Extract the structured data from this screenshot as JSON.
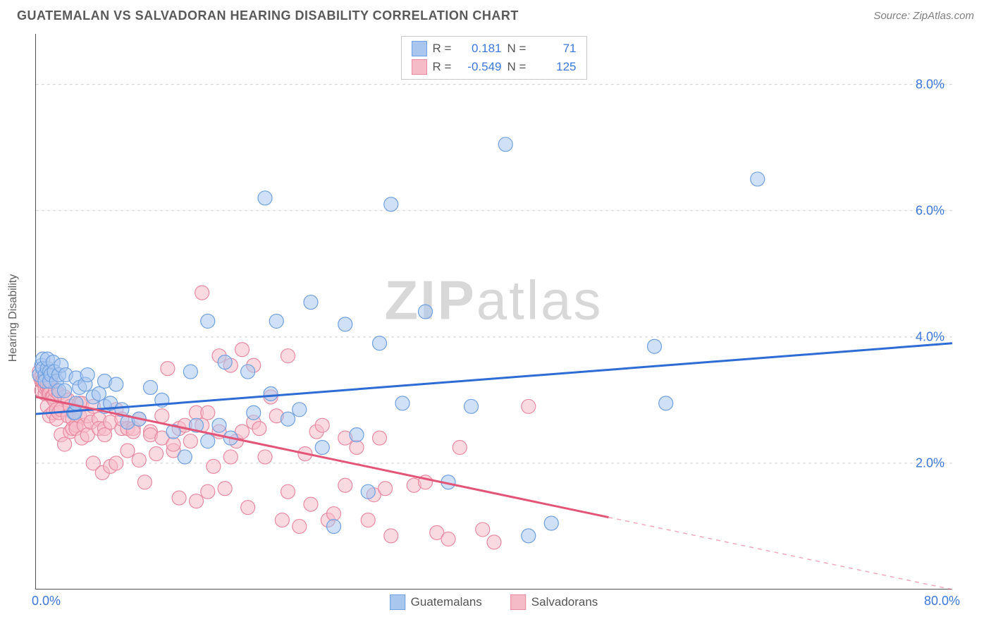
{
  "title": "GUATEMALAN VS SALVADORAN HEARING DISABILITY CORRELATION CHART",
  "source": "Source: ZipAtlas.com",
  "watermark": "ZIPatlas",
  "ylabel": "Hearing Disability",
  "chart": {
    "type": "scatter",
    "xlim": [
      0,
      80
    ],
    "ylim": [
      0,
      8.8
    ],
    "xtick_labels": [
      "0.0%",
      "80.0%"
    ],
    "xtick_positions": [
      0,
      80
    ],
    "ytick_labels": [
      "2.0%",
      "4.0%",
      "6.0%",
      "8.0%"
    ],
    "ytick_positions": [
      2,
      4,
      6,
      8
    ],
    "background_color": "#ffffff",
    "grid_color": "#d0d0d0",
    "grid_dash": "4,4",
    "axis_color": "#505050",
    "tick_font_color": "#3b78d8",
    "tick_fontsize": 18,
    "label_fontsize": 16,
    "label_color": "#606060",
    "marker_radius": 10,
    "marker_stroke_width": 1.2,
    "trend_line_width": 3
  },
  "series": [
    {
      "name": "Guatemalans",
      "fill": "#a9c6ef",
      "stroke": "#6fa0df",
      "fill_opacity": 0.55,
      "R": "0.181",
      "N": "71",
      "trend": {
        "x1": 0,
        "y1": 2.78,
        "x2": 80,
        "y2": 3.9,
        "dashed_after_x": null,
        "color": "#2d6cd4"
      },
      "points": [
        [
          0.3,
          3.4
        ],
        [
          0.5,
          3.55
        ],
        [
          0.6,
          3.65
        ],
        [
          0.6,
          3.5
        ],
        [
          0.8,
          3.4
        ],
        [
          0.8,
          3.3
        ],
        [
          1.0,
          3.5
        ],
        [
          1.0,
          3.65
        ],
        [
          1.2,
          3.45
        ],
        [
          1.2,
          3.3
        ],
        [
          1.3,
          3.4
        ],
        [
          1.5,
          3.6
        ],
        [
          1.6,
          3.45
        ],
        [
          1.8,
          3.3
        ],
        [
          2.0,
          3.4
        ],
        [
          2.0,
          3.15
        ],
        [
          2.2,
          3.55
        ],
        [
          2.5,
          3.15
        ],
        [
          2.6,
          3.4
        ],
        [
          3.3,
          2.8
        ],
        [
          3.4,
          2.8
        ],
        [
          3.5,
          3.35
        ],
        [
          3.5,
          2.95
        ],
        [
          3.8,
          3.2
        ],
        [
          4.3,
          3.25
        ],
        [
          4.5,
          3.4
        ],
        [
          5.0,
          3.05
        ],
        [
          5.5,
          3.1
        ],
        [
          6.0,
          3.3
        ],
        [
          6.0,
          2.9
        ],
        [
          6.5,
          2.95
        ],
        [
          7.0,
          3.25
        ],
        [
          7.5,
          2.85
        ],
        [
          8.0,
          2.65
        ],
        [
          9.0,
          2.7
        ],
        [
          10.0,
          3.2
        ],
        [
          11.0,
          3.0
        ],
        [
          12.0,
          2.5
        ],
        [
          13.0,
          2.1
        ],
        [
          13.5,
          3.45
        ],
        [
          14.0,
          2.6
        ],
        [
          15.0,
          2.35
        ],
        [
          15.0,
          4.25
        ],
        [
          16.0,
          2.6
        ],
        [
          16.5,
          3.6
        ],
        [
          17.0,
          2.4
        ],
        [
          18.5,
          3.45
        ],
        [
          19.0,
          2.8
        ],
        [
          20.0,
          6.2
        ],
        [
          20.5,
          3.1
        ],
        [
          21.0,
          4.25
        ],
        [
          22.0,
          2.7
        ],
        [
          23.0,
          2.85
        ],
        [
          24.0,
          4.55
        ],
        [
          25.0,
          2.25
        ],
        [
          26.0,
          1.0
        ],
        [
          27.0,
          4.2
        ],
        [
          28.0,
          2.45
        ],
        [
          29.0,
          1.55
        ],
        [
          30.0,
          3.9
        ],
        [
          31.0,
          6.1
        ],
        [
          32.0,
          2.95
        ],
        [
          34.0,
          4.4
        ],
        [
          36.0,
          1.7
        ],
        [
          38.0,
          2.9
        ],
        [
          41.0,
          7.05
        ],
        [
          43.0,
          0.85
        ],
        [
          45.0,
          1.05
        ],
        [
          54.0,
          3.85
        ],
        [
          55.0,
          2.95
        ],
        [
          63.0,
          6.5
        ]
      ]
    },
    {
      "name": "Salvadorans",
      "fill": "#f5bcc8",
      "stroke": "#e88aa1",
      "fill_opacity": 0.55,
      "R": "-0.549",
      "N": "125",
      "trend": {
        "x1": 0,
        "y1": 3.05,
        "x2": 80,
        "y2": 0.0,
        "dashed_after_x": 50,
        "color": "#e25578"
      },
      "points": [
        [
          0.3,
          3.45
        ],
        [
          0.4,
          3.35
        ],
        [
          0.5,
          3.3
        ],
        [
          0.5,
          3.15
        ],
        [
          0.6,
          3.3
        ],
        [
          0.7,
          3.3
        ],
        [
          0.8,
          3.1
        ],
        [
          0.8,
          3.2
        ],
        [
          1.0,
          3.2
        ],
        [
          1.0,
          3.25
        ],
        [
          1.0,
          2.9
        ],
        [
          1.1,
          3.1
        ],
        [
          1.2,
          3.2
        ],
        [
          1.2,
          3.1
        ],
        [
          1.2,
          2.75
        ],
        [
          1.3,
          3.3
        ],
        [
          1.4,
          3.05
        ],
        [
          1.5,
          3.05
        ],
        [
          1.5,
          2.8
        ],
        [
          1.6,
          3.0
        ],
        [
          1.7,
          3.15
        ],
        [
          1.8,
          2.85
        ],
        [
          1.8,
          2.7
        ],
        [
          2.0,
          3.1
        ],
        [
          2.0,
          2.8
        ],
        [
          2.2,
          2.85
        ],
        [
          2.2,
          2.45
        ],
        [
          2.5,
          3.05
        ],
        [
          2.5,
          2.3
        ],
        [
          2.8,
          3.0
        ],
        [
          2.8,
          2.75
        ],
        [
          3.0,
          2.9
        ],
        [
          3.0,
          2.5
        ],
        [
          3.2,
          2.7
        ],
        [
          3.2,
          2.55
        ],
        [
          3.5,
          2.6
        ],
        [
          3.5,
          2.55
        ],
        [
          3.8,
          2.95
        ],
        [
          3.8,
          2.75
        ],
        [
          4.0,
          2.95
        ],
        [
          4.0,
          2.4
        ],
        [
          4.2,
          2.6
        ],
        [
          4.5,
          2.75
        ],
        [
          4.5,
          2.45
        ],
        [
          4.8,
          2.65
        ],
        [
          5.0,
          2.9
        ],
        [
          5.0,
          2.0
        ],
        [
          5.5,
          2.7
        ],
        [
          5.5,
          2.55
        ],
        [
          5.8,
          1.85
        ],
        [
          6.0,
          2.55
        ],
        [
          6.0,
          2.45
        ],
        [
          6.5,
          2.65
        ],
        [
          6.5,
          1.95
        ],
        [
          7.0,
          2.85
        ],
        [
          7.0,
          2.0
        ],
        [
          7.5,
          2.55
        ],
        [
          7.5,
          2.7
        ],
        [
          8.0,
          2.55
        ],
        [
          8.0,
          2.2
        ],
        [
          8.5,
          2.55
        ],
        [
          8.5,
          2.5
        ],
        [
          9.0,
          2.7
        ],
        [
          9.0,
          2.05
        ],
        [
          9.5,
          1.7
        ],
        [
          10.0,
          2.5
        ],
        [
          10.0,
          2.45
        ],
        [
          10.5,
          2.15
        ],
        [
          11.0,
          2.4
        ],
        [
          11.0,
          2.75
        ],
        [
          11.5,
          3.5
        ],
        [
          12.0,
          2.2
        ],
        [
          12.0,
          2.3
        ],
        [
          12.5,
          2.55
        ],
        [
          12.5,
          1.45
        ],
        [
          13.0,
          2.6
        ],
        [
          13.5,
          2.35
        ],
        [
          14.0,
          2.8
        ],
        [
          14.0,
          1.4
        ],
        [
          14.5,
          2.6
        ],
        [
          14.5,
          4.7
        ],
        [
          15.0,
          2.8
        ],
        [
          15.0,
          1.55
        ],
        [
          15.5,
          1.95
        ],
        [
          16.0,
          2.5
        ],
        [
          16.0,
          3.7
        ],
        [
          16.5,
          1.6
        ],
        [
          17.0,
          3.55
        ],
        [
          17.0,
          2.1
        ],
        [
          17.5,
          2.35
        ],
        [
          18.0,
          3.8
        ],
        [
          18.0,
          2.5
        ],
        [
          18.5,
          1.3
        ],
        [
          19.0,
          2.65
        ],
        [
          19.0,
          3.55
        ],
        [
          19.5,
          2.55
        ],
        [
          20.0,
          2.1
        ],
        [
          20.5,
          3.05
        ],
        [
          21.0,
          2.75
        ],
        [
          21.5,
          1.1
        ],
        [
          22.0,
          3.7
        ],
        [
          22.0,
          1.55
        ],
        [
          23.0,
          1.0
        ],
        [
          23.5,
          2.15
        ],
        [
          24.0,
          1.35
        ],
        [
          24.5,
          2.5
        ],
        [
          25.0,
          2.6
        ],
        [
          25.5,
          1.1
        ],
        [
          26.0,
          1.2
        ],
        [
          27.0,
          2.4
        ],
        [
          27.0,
          1.65
        ],
        [
          28.0,
          2.25
        ],
        [
          29.0,
          1.1
        ],
        [
          29.5,
          1.5
        ],
        [
          30.0,
          2.4
        ],
        [
          30.5,
          1.6
        ],
        [
          31.0,
          0.85
        ],
        [
          33.0,
          1.65
        ],
        [
          34.0,
          1.7
        ],
        [
          35.0,
          0.9
        ],
        [
          36.0,
          0.8
        ],
        [
          37.0,
          2.25
        ],
        [
          39.0,
          0.95
        ],
        [
          40.0,
          0.75
        ],
        [
          43.0,
          2.9
        ]
      ]
    }
  ],
  "legend_bottom": {
    "items": [
      {
        "label": "Guatemalans",
        "fill": "#a9c6ef",
        "stroke": "#6fa0df"
      },
      {
        "label": "Salvadorans",
        "fill": "#f5bcc8",
        "stroke": "#e88aa1"
      }
    ]
  }
}
